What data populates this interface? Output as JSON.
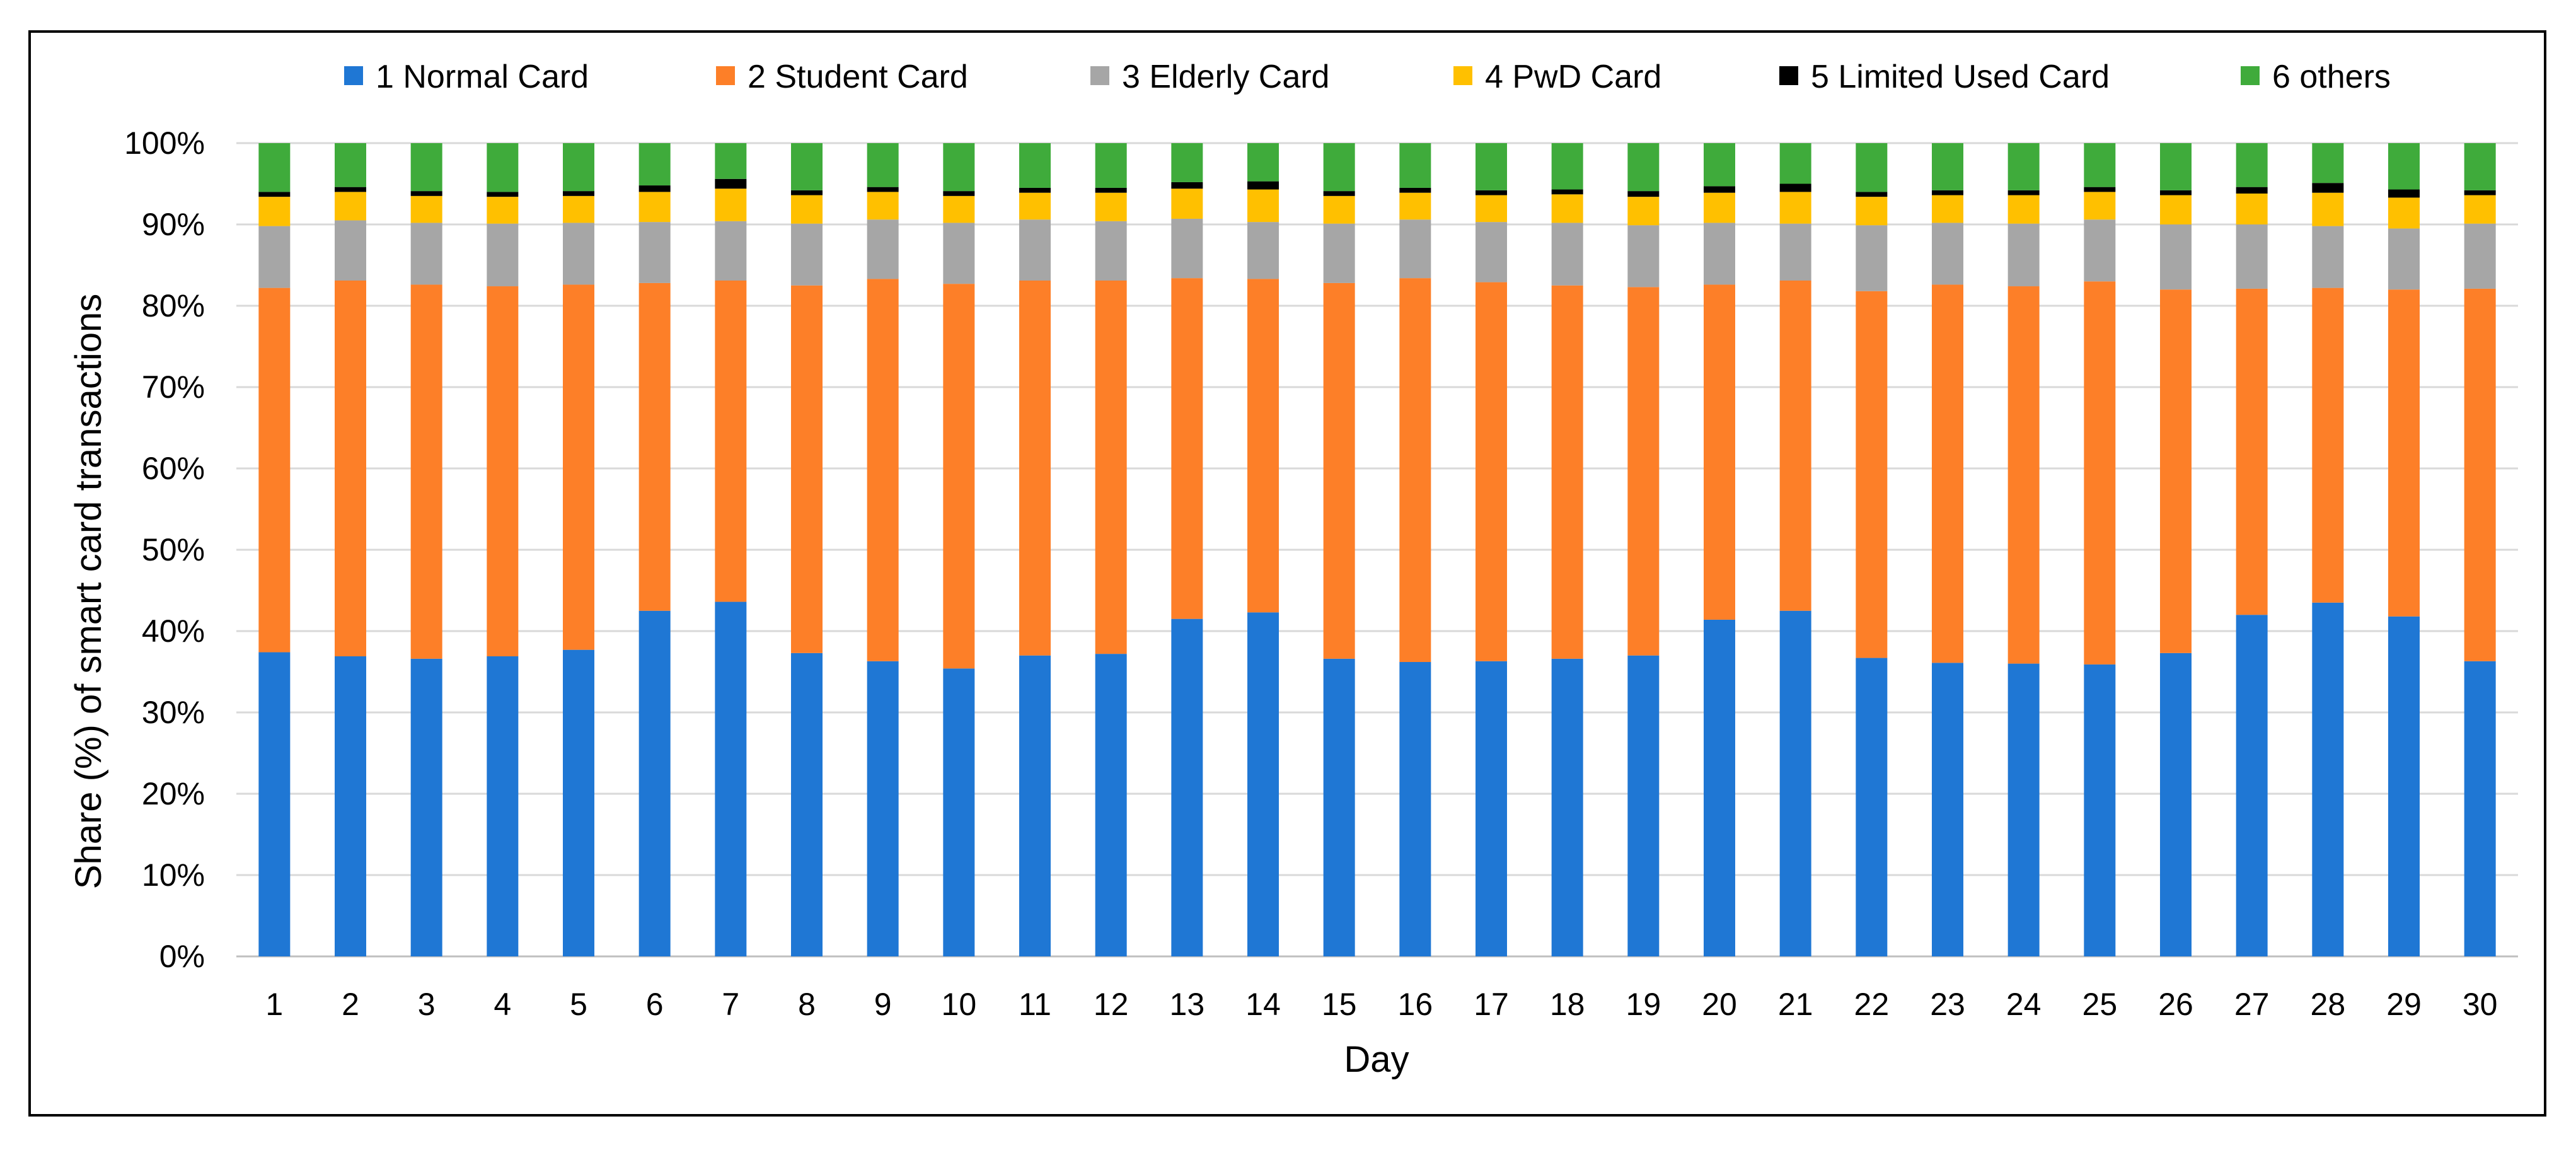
{
  "chart_data": {
    "type": "bar",
    "stacked": true,
    "title": "",
    "xlabel": "Day",
    "ylabel": "Share (%) of smart card transactions",
    "ylim": [
      0,
      100
    ],
    "yticks": [
      "0%",
      "10%",
      "20%",
      "30%",
      "40%",
      "50%",
      "60%",
      "70%",
      "80%",
      "90%",
      "100%"
    ],
    "legend_position": "top",
    "categories": [
      "1",
      "2",
      "3",
      "4",
      "5",
      "6",
      "7",
      "8",
      "9",
      "10",
      "11",
      "12",
      "13",
      "14",
      "15",
      "16",
      "17",
      "18",
      "19",
      "20",
      "21",
      "22",
      "23",
      "24",
      "25",
      "26",
      "27",
      "28",
      "29",
      "30"
    ],
    "series": [
      {
        "name": "1 Normal Card",
        "color": "#1f77d4",
        "values": [
          37.4,
          36.9,
          36.6,
          36.9,
          37.7,
          42.5,
          43.6,
          37.3,
          36.3,
          35.4,
          37.0,
          37.2,
          41.5,
          42.3,
          36.6,
          36.2,
          36.3,
          36.6,
          37.0,
          41.4,
          42.5,
          36.7,
          36.1,
          36.0,
          35.9,
          37.3,
          42.0,
          43.5,
          41.8,
          36.3
        ]
      },
      {
        "name": "2 Student Card",
        "color": "#fd7f28",
        "values": [
          44.8,
          46.2,
          46.0,
          45.5,
          44.9,
          40.3,
          39.5,
          45.2,
          47.0,
          47.3,
          46.1,
          45.9,
          41.9,
          41.0,
          46.2,
          47.2,
          46.6,
          45.9,
          45.3,
          41.2,
          40.6,
          45.1,
          46.5,
          46.4,
          47.1,
          44.7,
          40.1,
          38.7,
          40.2,
          45.8
        ]
      },
      {
        "name": "3 Elderly Card",
        "color": "#a6a6a6",
        "values": [
          7.6,
          7.4,
          7.6,
          7.7,
          7.6,
          7.5,
          7.3,
          7.6,
          7.3,
          7.5,
          7.5,
          7.3,
          7.3,
          7.0,
          7.3,
          7.2,
          7.4,
          7.7,
          7.6,
          7.6,
          7.0,
          8.1,
          7.6,
          7.7,
          7.6,
          8.0,
          7.9,
          7.6,
          7.5,
          8.0
        ]
      },
      {
        "name": "4 PwD Card",
        "color": "#ffc000",
        "values": [
          3.6,
          3.5,
          3.3,
          3.3,
          3.3,
          3.7,
          4.0,
          3.5,
          3.4,
          3.3,
          3.3,
          3.5,
          3.7,
          4.0,
          3.4,
          3.3,
          3.3,
          3.5,
          3.5,
          3.7,
          3.9,
          3.5,
          3.4,
          3.5,
          3.4,
          3.6,
          3.8,
          4.1,
          3.8,
          3.5
        ]
      },
      {
        "name": "5 Limited Used Card",
        "color": "#000000",
        "values": [
          0.6,
          0.6,
          0.6,
          0.6,
          0.6,
          0.8,
          1.2,
          0.6,
          0.6,
          0.6,
          0.6,
          0.6,
          0.8,
          1.0,
          0.6,
          0.6,
          0.6,
          0.6,
          0.7,
          0.8,
          1.0,
          0.6,
          0.6,
          0.6,
          0.6,
          0.6,
          0.8,
          1.2,
          1.0,
          0.6
        ]
      },
      {
        "name": "6 others",
        "color": "#3fab3b",
        "values": [
          6.0,
          5.4,
          5.9,
          6.0,
          5.9,
          5.2,
          4.4,
          5.8,
          5.4,
          5.9,
          5.5,
          5.5,
          4.8,
          4.7,
          5.9,
          5.5,
          5.8,
          5.7,
          5.9,
          5.3,
          5.0,
          6.0,
          5.8,
          5.8,
          5.4,
          5.8,
          5.4,
          4.9,
          5.7,
          5.8
        ]
      }
    ]
  }
}
